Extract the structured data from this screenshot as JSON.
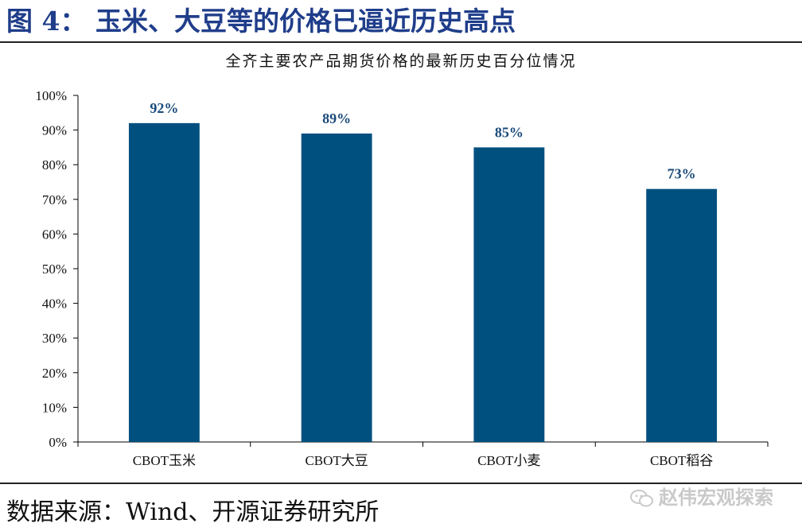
{
  "figure_title": "图 4：  玉米、大豆等的价格已逼近历史高点",
  "source": "数据来源：Wind、开源证券研究所",
  "watermark": "赵伟宏观探索",
  "chart_data": {
    "type": "bar",
    "title": "全齐主要农产品期货价格的最新历史百分位情况",
    "categories": [
      "CBOT玉米",
      "CBOT大豆",
      "CBOT小麦",
      "CBOT稻谷"
    ],
    "values": [
      92,
      89,
      85,
      73
    ],
    "data_labels": [
      "92%",
      "89%",
      "85%",
      "73%"
    ],
    "ylim": [
      0,
      100
    ],
    "yticks": [
      0,
      10,
      20,
      30,
      40,
      50,
      60,
      70,
      80,
      90,
      100
    ],
    "ytick_labels": [
      "0%",
      "10%",
      "20%",
      "30%",
      "40%",
      "50%",
      "60%",
      "70%",
      "80%",
      "90%",
      "100%"
    ],
    "xlabel": "",
    "ylabel": "",
    "grid": false,
    "colors": {
      "bar": "#00507f",
      "data_label": "#1a4a7a",
      "title": "#1f3d8a"
    }
  }
}
